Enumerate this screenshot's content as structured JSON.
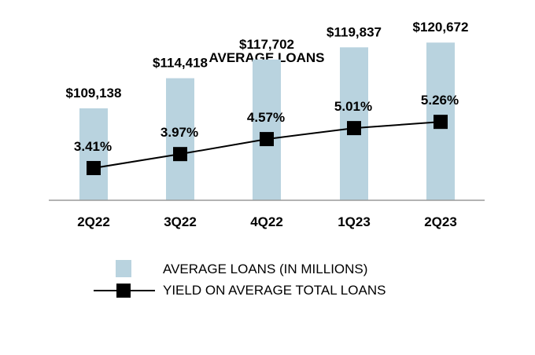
{
  "chart_data": {
    "type": "bar",
    "title": "AVERAGE LOANS",
    "categories": [
      "2Q22",
      "3Q22",
      "4Q22",
      "1Q23",
      "2Q23"
    ],
    "series": [
      {
        "name": "AVERAGE LOANS (IN MILLIONS)",
        "type": "bar",
        "values": [
          109138,
          114418,
          117702,
          119837,
          120672
        ],
        "labels": [
          "$109,138",
          "$114,418",
          "$117,702",
          "$119,837",
          "$120,672"
        ],
        "color": "#b9d3df"
      },
      {
        "name": "YIELD ON AVERAGE TOTAL LOANS",
        "type": "line",
        "values": [
          3.41,
          3.97,
          4.57,
          5.01,
          5.26
        ],
        "labels": [
          "3.41%",
          "3.97%",
          "4.57%",
          "5.01%",
          "5.26%"
        ],
        "color": "#000000"
      }
    ],
    "grid": false,
    "legend_position": "bottom"
  }
}
